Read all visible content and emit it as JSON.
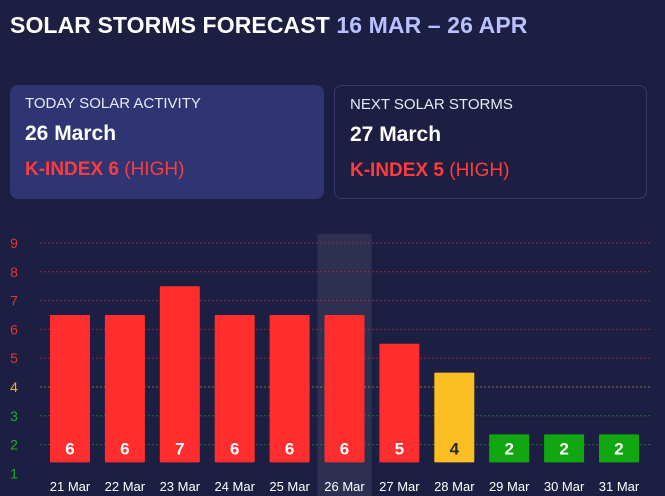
{
  "header": {
    "title": "SOLAR STORMS FORECAST",
    "range": "16 MAR – 26 APR"
  },
  "today": {
    "label": "TODAY SOLAR ACTIVITY",
    "date": "26 March",
    "kindex": "K-INDEX 6",
    "level": "(HIGH)"
  },
  "next": {
    "label": "NEXT SOLAR STORMS",
    "date": "27 March",
    "kindex": "K-INDEX 5",
    "level": "(HIGH)"
  },
  "colors": {
    "high": "#ff2d2d",
    "moderate": "#fbbf24",
    "low": "#10a710",
    "range_text": "#b9c0ff"
  },
  "chart_data": {
    "type": "bar",
    "categories": [
      "21 Mar",
      "22 Mar",
      "23 Mar",
      "24 Mar",
      "25 Mar",
      "26 Mar",
      "27 Mar",
      "28 Mar",
      "29 Mar",
      "30 Mar",
      "31 Mar"
    ],
    "values": [
      6,
      6,
      7,
      6,
      6,
      6,
      5,
      4,
      2,
      2,
      2
    ],
    "ylim": [
      1,
      9
    ],
    "yticks": [
      1,
      2,
      3,
      4,
      5,
      6,
      7,
      8,
      9
    ],
    "highlight_category": "26 Mar",
    "grid": true,
    "title": "",
    "xlabel": "",
    "ylabel": ""
  }
}
